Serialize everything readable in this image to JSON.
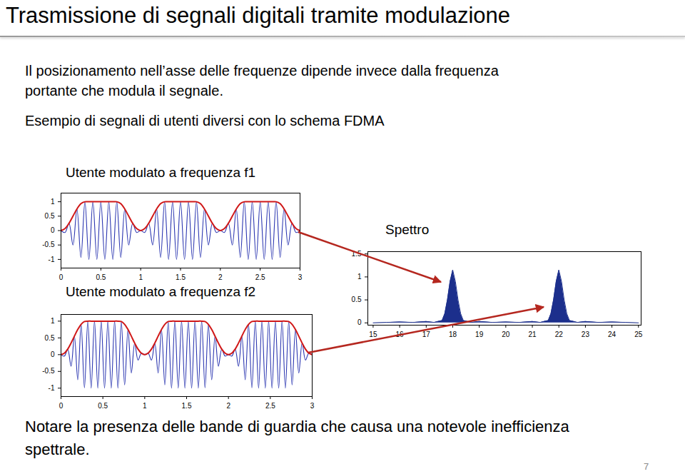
{
  "slide": {
    "title": "Trasmissione di segnali digitali tramite modulazione",
    "paragraphs": [
      [
        "Il posizionamento nell’asse delle frequenze dipende invece dalla frequenza",
        "portante che modula il segnale."
      ],
      [
        "Esempio di segnali di utenti diversi con lo schema FDMA"
      ]
    ],
    "note": [
      "Notare la presenza delle bande di guardia che causa una notevole inefficienza",
      "spettrale."
    ],
    "page_number": "7"
  },
  "chart_data": [
    {
      "type": "line",
      "title": "Utente modulato a frequenza f1",
      "x": [
        0,
        0.05,
        0.1,
        0.15,
        0.2,
        0.25,
        0.3,
        0.35,
        0.4,
        0.45,
        0.5,
        0.55,
        0.6,
        0.65,
        0.7,
        0.75,
        0.8,
        0.85,
        0.9,
        0.95,
        1,
        1.05,
        1.1,
        1.15,
        1.2,
        1.25,
        1.3,
        1.35,
        1.4,
        1.45,
        1.5,
        1.55,
        1.6,
        1.65,
        1.7,
        1.75,
        1.8,
        1.85,
        1.9,
        1.95,
        2,
        2.05,
        2.1,
        2.15,
        2.2,
        2.25,
        2.3,
        2.35,
        2.4,
        2.45,
        2.5,
        2.55,
        2.6,
        2.65,
        2.7,
        2.75,
        2.8,
        2.85,
        2.9,
        2.95,
        3
      ],
      "series": [
        {
          "color": "#2a35b0",
          "values": [
            0,
            -0.067,
            0.25,
            -0.5,
            0.75,
            -0.933,
            1,
            -1,
            1,
            -1,
            1,
            -1,
            1,
            -1,
            1,
            -0.933,
            0.75,
            -0.5,
            0.25,
            -0.067,
            0,
            -0.067,
            0.25,
            -0.5,
            0.75,
            -0.933,
            1,
            -1,
            1,
            -1,
            1,
            -1,
            1,
            -1,
            1,
            -0.933,
            0.75,
            -0.5,
            0.25,
            -0.067,
            0,
            -0.067,
            0.25,
            -0.5,
            0.75,
            -0.933,
            1,
            -1,
            1,
            -1,
            1,
            -1,
            1,
            -1,
            1,
            -0.933,
            0.75,
            -0.5,
            0.25,
            -0.067,
            0
          ]
        },
        {
          "color": "#d01818",
          "values": [
            0,
            0.067,
            0.25,
            0.5,
            0.75,
            0.933,
            1,
            1,
            1,
            1,
            1,
            1,
            1,
            1,
            1,
            0.933,
            0.75,
            0.5,
            0.25,
            0.067,
            0,
            0.067,
            0.25,
            0.5,
            0.75,
            0.933,
            1,
            1,
            1,
            1,
            1,
            1,
            1,
            1,
            1,
            0.933,
            0.75,
            0.5,
            0.25,
            0.067,
            0,
            0.067,
            0.25,
            0.5,
            0.75,
            0.933,
            1,
            1,
            1,
            1,
            1,
            1,
            1,
            1,
            1,
            0.933,
            0.75,
            0.5,
            0.25,
            0.067,
            0
          ]
        }
      ],
      "xlim": [
        0,
        3
      ],
      "xticks": [
        0,
        0.5,
        1,
        1.5,
        2,
        2.5,
        3
      ],
      "ylim": [
        -1.3,
        1.3
      ],
      "yticks": [
        -1,
        -0.5,
        0,
        0.5,
        1
      ],
      "grid": false
    },
    {
      "type": "line",
      "title": "Utente modulato a frequenza f2",
      "x": [
        0,
        0.04,
        0.08,
        0.12,
        0.16,
        0.2,
        0.24,
        0.28,
        0.32,
        0.36,
        0.4,
        0.44,
        0.48,
        0.52,
        0.56,
        0.6,
        0.64,
        0.68,
        0.72,
        0.76,
        0.8,
        0.84,
        0.88,
        0.92,
        0.96,
        1,
        1.04,
        1.08,
        1.12,
        1.16,
        1.2,
        1.24,
        1.28,
        1.32,
        1.36,
        1.4,
        1.44,
        1.48,
        1.52,
        1.56,
        1.6,
        1.64,
        1.68,
        1.72,
        1.76,
        1.8,
        1.84,
        1.88,
        1.92,
        1.96,
        2,
        2.04,
        2.08,
        2.12,
        2.16,
        2.2,
        2.24,
        2.28,
        2.32,
        2.36,
        2.4,
        2.44,
        2.48,
        2.52,
        2.56,
        2.6,
        2.64,
        2.68,
        2.72,
        2.76,
        2.8,
        2.84,
        2.88,
        2.92,
        2.96,
        3
      ],
      "series": [
        {
          "color": "#2a35b0",
          "values": [
            0,
            -0.043,
            0.165,
            -0.345,
            0.552,
            -0.75,
            0.905,
            -0.989,
            1,
            -1,
            1,
            -1,
            1,
            -1,
            1,
            -1,
            1,
            -1,
            0.989,
            -0.905,
            0.75,
            -0.552,
            0.345,
            -0.165,
            0.043,
            0,
            0.043,
            -0.165,
            0.345,
            -0.552,
            0.75,
            -0.905,
            0.989,
            -1,
            1,
            -1,
            1,
            -1,
            1,
            -1,
            1,
            -1,
            1,
            -0.989,
            0.905,
            -0.75,
            0.552,
            -0.345,
            0.165,
            -0.043,
            0,
            -0.043,
            0.165,
            -0.345,
            0.552,
            -0.75,
            0.905,
            -0.989,
            1,
            -1,
            1,
            -1,
            1,
            -1,
            1,
            -1,
            1,
            -1,
            0.989,
            -0.905,
            0.75,
            -0.552,
            0.345,
            -0.165,
            0.043,
            0
          ]
        },
        {
          "color": "#d01818",
          "values": [
            0,
            0.043,
            0.165,
            0.345,
            0.552,
            0.75,
            0.905,
            0.989,
            1,
            1,
            1,
            1,
            1,
            1,
            1,
            1,
            1,
            1,
            0.989,
            0.905,
            0.75,
            0.552,
            0.345,
            0.165,
            0.043,
            0,
            0.043,
            0.165,
            0.345,
            0.552,
            0.75,
            0.905,
            0.989,
            1,
            1,
            1,
            1,
            1,
            1,
            1,
            1,
            1,
            1,
            0.989,
            0.905,
            0.75,
            0.552,
            0.345,
            0.165,
            0.043,
            0,
            0.043,
            0.165,
            0.345,
            0.552,
            0.75,
            0.905,
            0.989,
            1,
            1,
            1,
            1,
            1,
            1,
            1,
            1,
            1,
            1,
            0.989,
            0.905,
            0.75,
            0.552,
            0.345,
            0.165,
            0.043,
            0
          ]
        }
      ],
      "xlim": [
        0,
        3
      ],
      "xticks": [
        0,
        0.5,
        1,
        1.5,
        2,
        2.5,
        3
      ],
      "ylim": [
        -1.25,
        1.2
      ],
      "yticks": [
        -1,
        -0.5,
        0,
        0.5,
        1
      ],
      "grid": false
    },
    {
      "type": "area",
      "title": "Spettro",
      "x": [
        15,
        15.5,
        16,
        16.5,
        17,
        17.3,
        17.5,
        17.6,
        17.7,
        17.8,
        17.9,
        18,
        18.1,
        18.2,
        18.3,
        18.4,
        18.5,
        18.7,
        19,
        19.5,
        20,
        20.5,
        21,
        21.3,
        21.5,
        21.6,
        21.7,
        21.8,
        21.9,
        22,
        22.1,
        22.2,
        22.3,
        22.4,
        22.5,
        22.7,
        23,
        23.5,
        24,
        24.5,
        25
      ],
      "series": [
        {
          "color": "#1c2f8c",
          "values": [
            0,
            0.01,
            0.02,
            0.01,
            0.03,
            0.01,
            0.04,
            0.05,
            0.2,
            0.5,
            0.9,
            1.15,
            0.9,
            0.5,
            0.2,
            0.05,
            0.04,
            0.01,
            0.03,
            0.01,
            0.02,
            0.01,
            0.03,
            0.01,
            0.04,
            0.05,
            0.2,
            0.5,
            0.9,
            1.15,
            0.9,
            0.5,
            0.2,
            0.05,
            0.04,
            0.01,
            0.03,
            0.01,
            0.02,
            0.01,
            0
          ]
        }
      ],
      "xlim": [
        14.8,
        25.1
      ],
      "xticks": [
        15,
        16,
        17,
        18,
        19,
        20,
        21,
        22,
        23,
        24,
        25
      ],
      "ylim": [
        -0.05,
        1.55
      ],
      "yticks": [
        0,
        0.5,
        1,
        1.5
      ],
      "grid": false
    }
  ]
}
